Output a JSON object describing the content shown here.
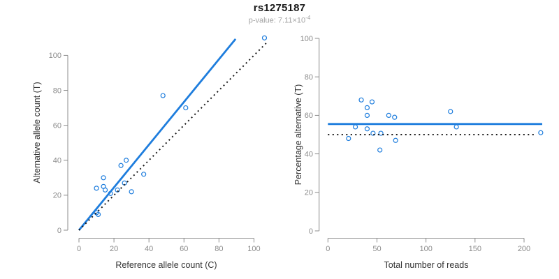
{
  "header": {
    "title": "rs1275187",
    "subtitle_prefix": "p-value: 7.11×10",
    "subtitle_exponent": "-4"
  },
  "colors": {
    "accent_blue": "#1e7ddd",
    "identity_black": "#1a1a1a",
    "axis_gray": "#8c8c8c",
    "tick_label_gray": "#8c8c8c",
    "axis_title_dark": "#333333",
    "subtitle_gray": "#a3a3a3"
  },
  "chart_data": [
    {
      "type": "scatter",
      "panel": "allele-counts",
      "xlabel": "Reference allele count (C)",
      "ylabel": "Alternative allele count (T)",
      "xticks": [
        0,
        20,
        40,
        60,
        80,
        100
      ],
      "yticks": [
        0,
        20,
        40,
        60,
        80,
        100
      ],
      "xlim": [
        0,
        110
      ],
      "ylim": [
        0,
        114
      ],
      "grid": false,
      "points": [
        [
          10,
          24
        ],
        [
          14,
          25
        ],
        [
          14,
          30
        ],
        [
          15,
          23
        ],
        [
          18,
          21
        ],
        [
          22,
          23
        ],
        [
          30,
          22
        ],
        [
          10,
          10
        ],
        [
          11,
          9
        ],
        [
          24,
          37
        ],
        [
          27,
          40
        ],
        [
          26,
          27
        ],
        [
          37,
          32
        ],
        [
          48,
          77
        ],
        [
          61,
          70
        ],
        [
          106,
          110
        ]
      ],
      "lines": [
        {
          "name": "regression",
          "x1": 0,
          "y1": 0,
          "x2": 89.5,
          "y2": 109.4,
          "color": "#1e7ddd",
          "dashed": false
        },
        {
          "name": "identity",
          "x1": 0,
          "y1": 0,
          "x2": 108,
          "y2": 108,
          "color": "#1a1a1a",
          "dashed": true
        }
      ]
    },
    {
      "type": "scatter",
      "panel": "percentage-vs-reads",
      "xlabel": "Total number of reads",
      "ylabel": "Percentage alternative (T)",
      "xticks": [
        0,
        50,
        100,
        150,
        200
      ],
      "yticks": [
        0,
        20,
        40,
        60,
        80,
        100
      ],
      "xlim": [
        0,
        225
      ],
      "ylim": [
        0,
        100
      ],
      "grid": false,
      "points": [
        [
          34,
          68
        ],
        [
          40,
          64
        ],
        [
          45,
          67
        ],
        [
          40,
          60
        ],
        [
          62,
          60
        ],
        [
          68,
          59
        ],
        [
          125,
          62
        ],
        [
          28,
          54
        ],
        [
          40,
          53
        ],
        [
          131,
          54
        ],
        [
          46,
          50.7
        ],
        [
          54,
          50.7
        ],
        [
          21,
          48
        ],
        [
          69,
          47
        ],
        [
          53,
          42
        ],
        [
          217,
          51
        ]
      ],
      "lines": [
        {
          "name": "mean-percentage",
          "x1": 0,
          "y1": 55.5,
          "x2": 218.5,
          "y2": 55.5,
          "color": "#1e7ddd",
          "dashed": false
        },
        {
          "name": "fifty-percent",
          "x1": 0,
          "y1": 50,
          "x2": 213,
          "y2": 50,
          "color": "#1a1a1a",
          "dashed": true
        }
      ]
    }
  ]
}
